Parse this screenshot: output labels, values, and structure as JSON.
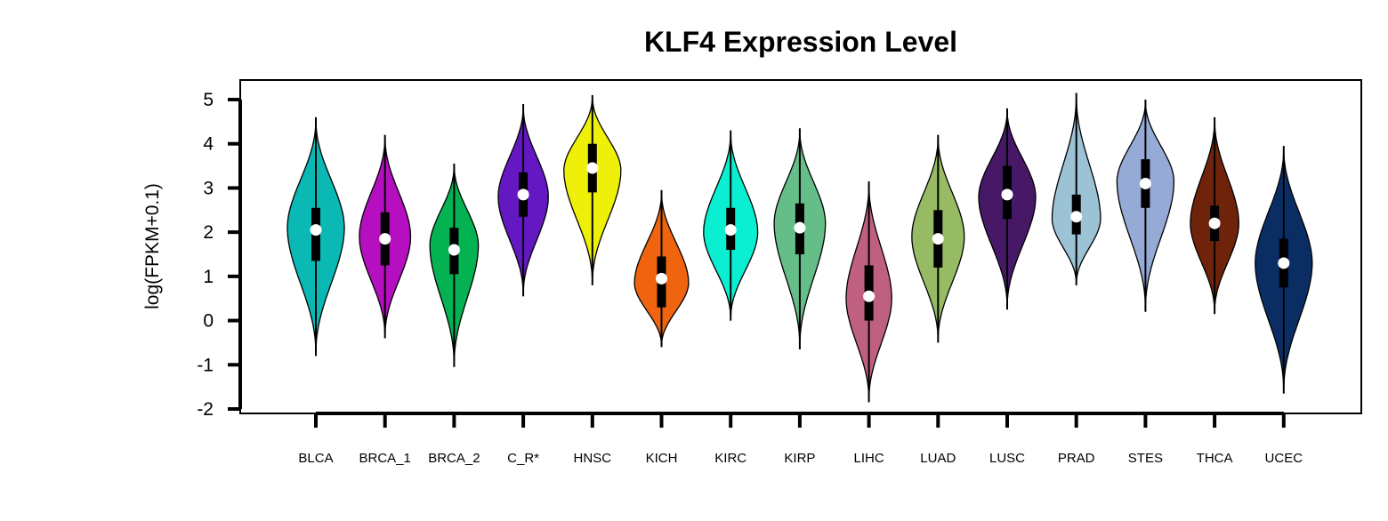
{
  "chart_data": {
    "type": "violin",
    "title": "KLF4 Expression Level",
    "xlabel": "",
    "ylabel": "log(FPKM+0.1)",
    "ylim": [
      -2,
      5
    ],
    "yticks": [
      5,
      4,
      3,
      2,
      1,
      0,
      -1,
      -2
    ],
    "grid": false,
    "legend": "none",
    "categories": [
      "BLCA",
      "BRCA_1",
      "BRCA_2",
      "C_R*",
      "HNSC",
      "KICH",
      "KIRC",
      "KIRP",
      "LIHC",
      "LUAD",
      "LUSC",
      "PRAD",
      "STES",
      "THCA",
      "UCEC"
    ],
    "colors": [
      "#0ab8b4",
      "#b50fbf",
      "#05b252",
      "#6418c2",
      "#eef00a",
      "#f06410",
      "#0aefd2",
      "#65bd87",
      "#bf6080",
      "#96bb64",
      "#461866",
      "#9cc2d6",
      "#96aad6",
      "#6e230a",
      "#0a2e64"
    ],
    "violins": [
      {
        "name": "BLCA",
        "median": 2.05,
        "q1": 1.35,
        "q3": 2.55,
        "whisker_low": -0.3,
        "whisker_high": 4.0,
        "min": -0.8,
        "max": 4.6,
        "peak": 2.1,
        "density_width": 1.0
      },
      {
        "name": "BRCA_1",
        "median": 1.85,
        "q1": 1.25,
        "q3": 2.45,
        "whisker_low": -0.4,
        "whisker_high": 4.2,
        "min": -0.4,
        "max": 4.2,
        "peak": 1.9,
        "density_width": 0.9
      },
      {
        "name": "BRCA_2",
        "median": 1.6,
        "q1": 1.05,
        "q3": 2.1,
        "whisker_low": -0.5,
        "whisker_high": 3.5,
        "min": -1.05,
        "max": 3.55,
        "peak": 1.7,
        "density_width": 0.85
      },
      {
        "name": "C_R*",
        "median": 2.85,
        "q1": 2.35,
        "q3": 3.35,
        "whisker_low": 0.55,
        "whisker_high": 4.9,
        "min": 0.55,
        "max": 4.9,
        "peak": 2.8,
        "density_width": 0.88
      },
      {
        "name": "HNSC",
        "median": 3.45,
        "q1": 2.9,
        "q3": 4.0,
        "whisker_low": 1.2,
        "whisker_high": 5.1,
        "min": 0.8,
        "max": 5.1,
        "peak": 3.4,
        "density_width": 1.0
      },
      {
        "name": "KICH",
        "median": 0.95,
        "q1": 0.3,
        "q3": 1.45,
        "whisker_low": -0.6,
        "whisker_high": 2.95,
        "min": -0.6,
        "max": 2.95,
        "peak": 0.85,
        "density_width": 0.95
      },
      {
        "name": "KIRC",
        "median": 2.05,
        "q1": 1.6,
        "q3": 2.55,
        "whisker_low": 0.3,
        "whisker_high": 3.8,
        "min": 0.0,
        "max": 4.3,
        "peak": 2.0,
        "density_width": 0.95
      },
      {
        "name": "KIRP",
        "median": 2.1,
        "q1": 1.5,
        "q3": 2.65,
        "whisker_low": -0.2,
        "whisker_high": 4.0,
        "min": -0.65,
        "max": 4.35,
        "peak": 2.2,
        "density_width": 0.9
      },
      {
        "name": "LIHC",
        "median": 0.55,
        "q1": 0.0,
        "q3": 1.25,
        "whisker_low": -1.6,
        "whisker_high": 3.15,
        "min": -1.85,
        "max": 3.15,
        "peak": 0.5,
        "density_width": 0.8
      },
      {
        "name": "LUAD",
        "median": 1.85,
        "q1": 1.2,
        "q3": 2.5,
        "whisker_low": -0.3,
        "whisker_high": 4.0,
        "min": -0.5,
        "max": 4.2,
        "peak": 1.9,
        "density_width": 0.92
      },
      {
        "name": "LUSC",
        "median": 2.85,
        "q1": 2.3,
        "q3": 3.5,
        "whisker_low": 0.7,
        "whisker_high": 4.8,
        "min": 0.25,
        "max": 4.8,
        "peak": 2.8,
        "density_width": 1.0
      },
      {
        "name": "PRAD",
        "median": 2.35,
        "q1": 1.95,
        "q3": 2.85,
        "whisker_low": 0.8,
        "whisker_high": 4.4,
        "min": 0.8,
        "max": 5.15,
        "peak": 2.3,
        "density_width": 0.85
      },
      {
        "name": "STES",
        "median": 3.1,
        "q1": 2.55,
        "q3": 3.65,
        "whisker_low": 0.9,
        "whisker_high": 4.9,
        "min": 0.2,
        "max": 5.0,
        "peak": 3.15,
        "density_width": 1.0
      },
      {
        "name": "THCA",
        "median": 2.2,
        "q1": 1.8,
        "q3": 2.6,
        "whisker_low": 0.6,
        "whisker_high": 4.0,
        "min": 0.15,
        "max": 4.6,
        "peak": 2.2,
        "density_width": 0.85
      },
      {
        "name": "UCEC",
        "median": 1.3,
        "q1": 0.75,
        "q3": 1.85,
        "whisker_low": -0.9,
        "whisker_high": 3.4,
        "min": -1.65,
        "max": 3.95,
        "peak": 1.3,
        "density_width": 1.0
      }
    ]
  }
}
